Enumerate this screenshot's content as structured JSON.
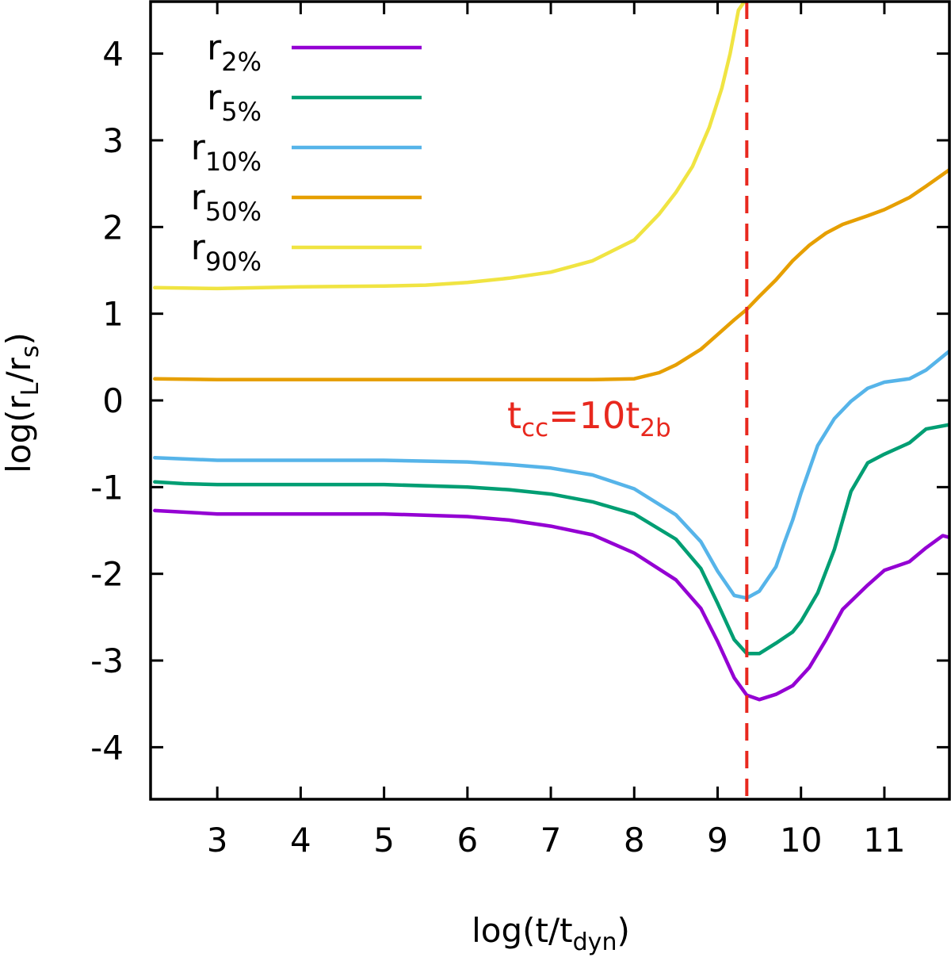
{
  "chart_data": {
    "type": "line",
    "xlabel": {
      "base": "log(t/t",
      "sub": "dyn",
      "tail": ")"
    },
    "ylabel": {
      "base": "log(r",
      "sub1": "L",
      "mid": "/r",
      "sub2": "s",
      "tail": ")"
    },
    "xlim": [
      2.2,
      11.78
    ],
    "ylim": [
      -4.6,
      4.6
    ],
    "xticks": [
      3,
      4,
      5,
      6,
      7,
      8,
      9,
      10,
      11
    ],
    "yticks": [
      4,
      3,
      2,
      1,
      0,
      -1,
      -2,
      -3,
      -4
    ],
    "vline": {
      "x": 9.35,
      "color": "#e8281e"
    },
    "annotation": {
      "base": "t",
      "sub1": "cc",
      "mid": "=10t",
      "sub2": "2b",
      "color": "#e8281e"
    },
    "legend_position": "top-left",
    "series": [
      {
        "name": "r",
        "sub": "2%",
        "color": "#9400d3",
        "x": [
          2.25,
          3,
          4,
          5,
          6,
          6.5,
          7,
          7.5,
          8,
          8.5,
          8.8,
          9.0,
          9.2,
          9.35,
          9.5,
          9.7,
          9.9,
          10.1,
          10.3,
          10.5,
          10.8,
          11.0,
          11.3,
          11.5,
          11.7,
          11.78
        ],
        "y": [
          -1.27,
          -1.31,
          -1.31,
          -1.31,
          -1.34,
          -1.38,
          -1.45,
          -1.55,
          -1.76,
          -2.07,
          -2.4,
          -2.78,
          -3.2,
          -3.4,
          -3.45,
          -3.39,
          -3.29,
          -3.08,
          -2.76,
          -2.41,
          -2.13,
          -1.96,
          -1.86,
          -1.7,
          -1.56,
          -1.58
        ]
      },
      {
        "name": "r",
        "sub": "5%",
        "color": "#009e73",
        "x": [
          2.25,
          2.6,
          3,
          4,
          5,
          6,
          6.5,
          7,
          7.5,
          8,
          8.5,
          8.8,
          9.0,
          9.2,
          9.35,
          9.5,
          9.7,
          9.9,
          10.0,
          10.2,
          10.4,
          10.6,
          10.8,
          11.0,
          11.3,
          11.5,
          11.78
        ],
        "y": [
          -0.94,
          -0.96,
          -0.97,
          -0.97,
          -0.97,
          -1.0,
          -1.03,
          -1.08,
          -1.17,
          -1.31,
          -1.6,
          -1.94,
          -2.34,
          -2.76,
          -2.92,
          -2.92,
          -2.8,
          -2.67,
          -2.55,
          -2.22,
          -1.72,
          -1.05,
          -0.72,
          -0.62,
          -0.49,
          -0.33,
          -0.28
        ]
      },
      {
        "name": "r",
        "sub": "10%",
        "color": "#56b4e9",
        "x": [
          2.25,
          3,
          4,
          5,
          6,
          6.5,
          7,
          7.5,
          8,
          8.5,
          8.8,
          9.0,
          9.2,
          9.35,
          9.5,
          9.7,
          9.8,
          9.9,
          10.0,
          10.2,
          10.4,
          10.6,
          10.8,
          11.0,
          11.3,
          11.5,
          11.78
        ],
        "y": [
          -0.66,
          -0.69,
          -0.69,
          -0.69,
          -0.71,
          -0.74,
          -0.78,
          -0.86,
          -1.02,
          -1.32,
          -1.63,
          -1.97,
          -2.25,
          -2.28,
          -2.2,
          -1.92,
          -1.64,
          -1.38,
          -1.07,
          -0.52,
          -0.21,
          -0.01,
          0.14,
          0.21,
          0.25,
          0.35,
          0.57
        ]
      },
      {
        "name": "r",
        "sub": "50%",
        "color": "#e69f00",
        "x": [
          2.25,
          3,
          4,
          5,
          6,
          7,
          7.5,
          8.0,
          8.3,
          8.5,
          8.8,
          9.0,
          9.2,
          9.35,
          9.5,
          9.7,
          9.9,
          10.1,
          10.3,
          10.5,
          10.8,
          11.0,
          11.3,
          11.5,
          11.78
        ],
        "y": [
          0.25,
          0.24,
          0.24,
          0.24,
          0.24,
          0.24,
          0.24,
          0.25,
          0.32,
          0.41,
          0.59,
          0.76,
          0.93,
          1.05,
          1.2,
          1.39,
          1.61,
          1.79,
          1.93,
          2.03,
          2.13,
          2.2,
          2.34,
          2.47,
          2.66
        ]
      },
      {
        "name": "r",
        "sub": "90%",
        "color": "#f0e442",
        "x": [
          2.25,
          3,
          4,
          5,
          5.5,
          6,
          6.5,
          7,
          7.5,
          8,
          8.3,
          8.5,
          8.7,
          8.9,
          9.05,
          9.15,
          9.25,
          9.32
        ],
        "y": [
          1.3,
          1.29,
          1.31,
          1.32,
          1.33,
          1.36,
          1.41,
          1.48,
          1.61,
          1.85,
          2.15,
          2.4,
          2.7,
          3.15,
          3.6,
          4.0,
          4.5,
          4.6
        ]
      }
    ]
  }
}
